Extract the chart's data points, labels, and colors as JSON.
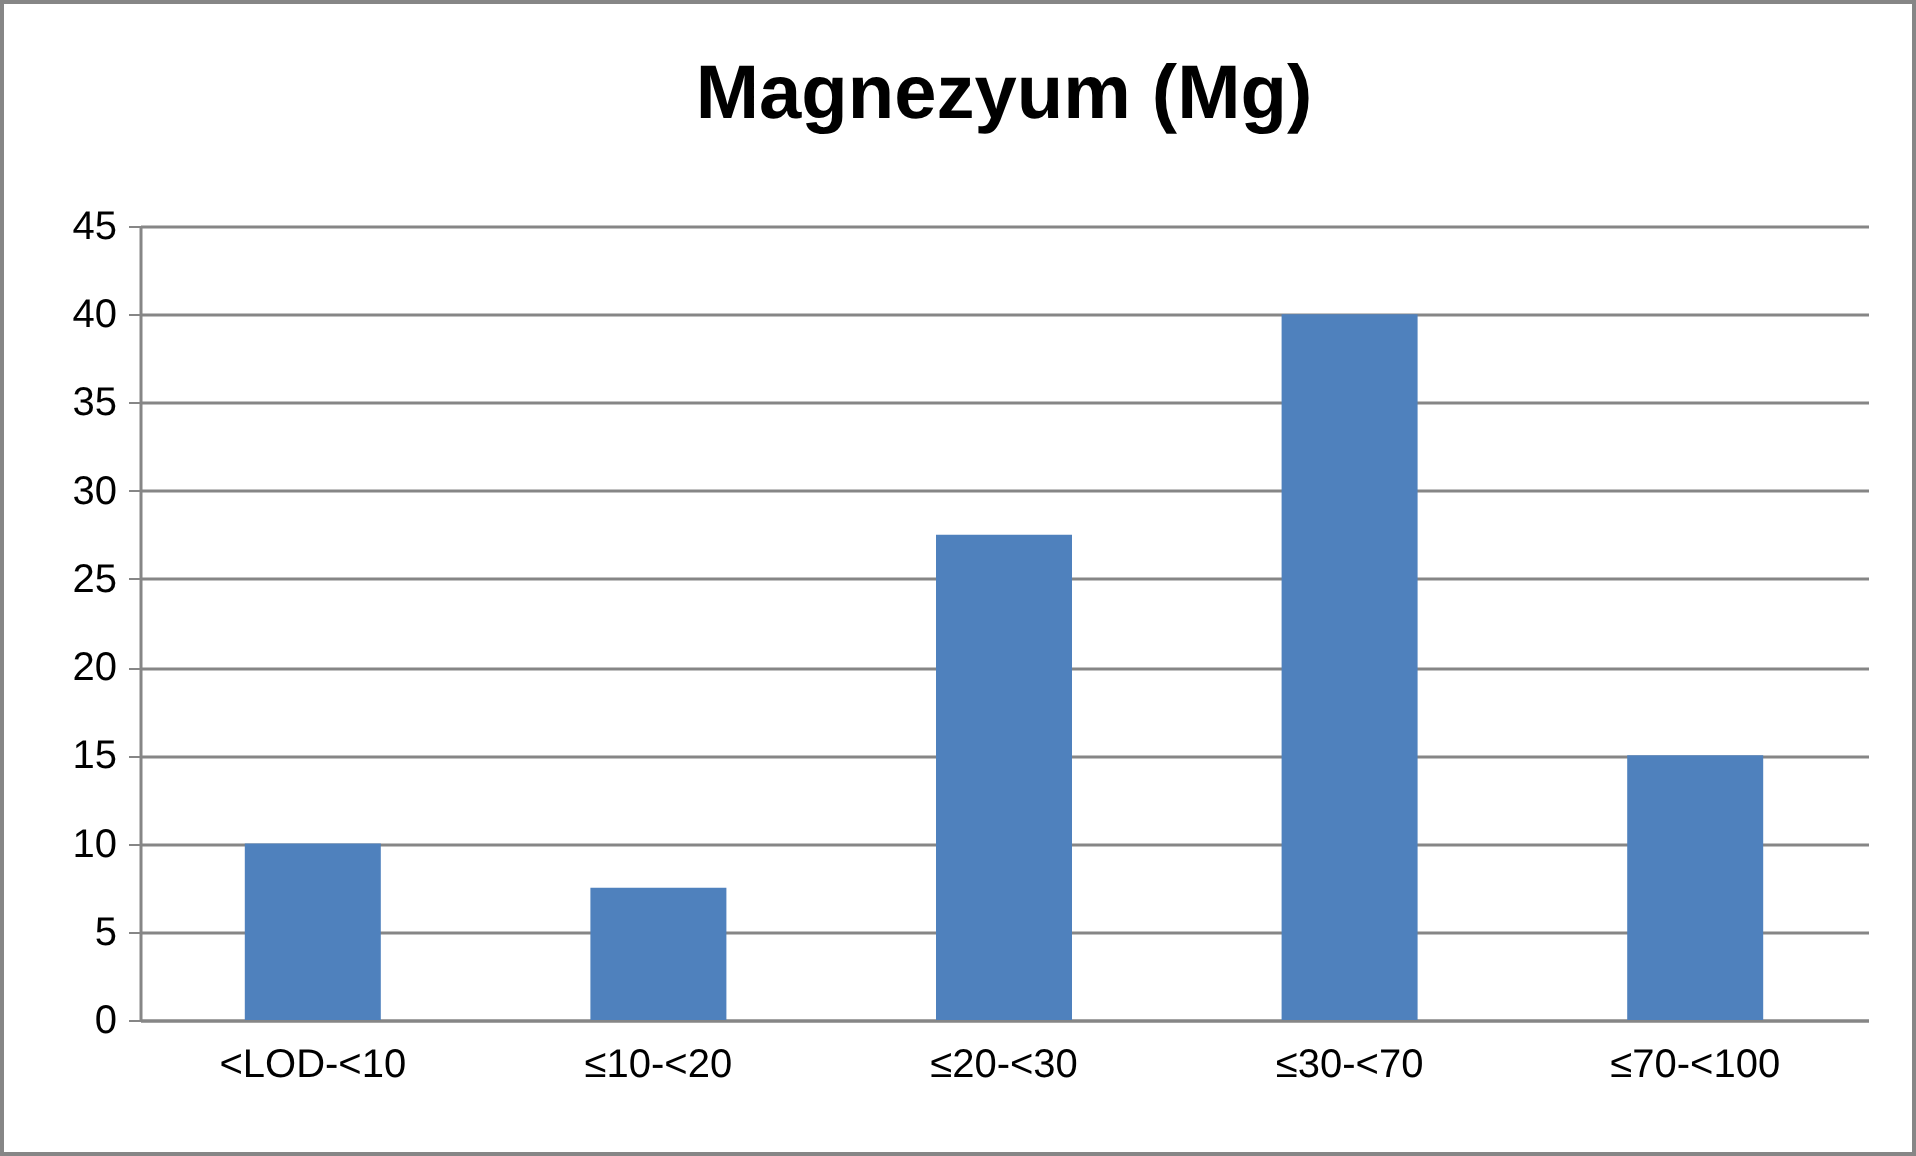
{
  "chart_data": {
    "type": "bar",
    "title": "Magnezyum (Mg)",
    "categories": [
      "<LOD-<10",
      "≤10-<20",
      "≤20-<30",
      "≤30-<70",
      "≤70-<100"
    ],
    "values": [
      10,
      7.5,
      27.5,
      40,
      15
    ],
    "color": "#4f81bd",
    "ylim": [
      0,
      45
    ],
    "yticks": [
      0,
      5,
      10,
      15,
      20,
      25,
      30,
      35,
      40,
      45
    ],
    "grid": "y"
  }
}
